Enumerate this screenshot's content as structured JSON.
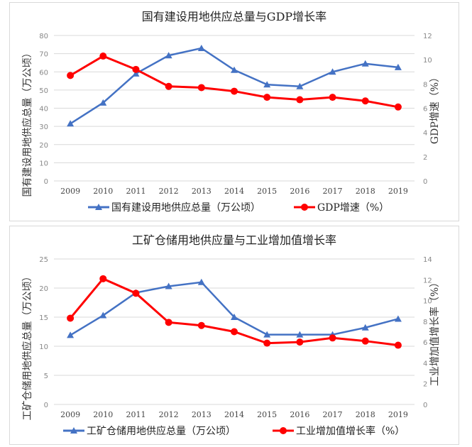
{
  "chart_data": [
    {
      "type": "line",
      "title": "国有建设用地供应总量与GDP增长率",
      "categories": [
        "2009",
        "2010",
        "2011",
        "2012",
        "2013",
        "2014",
        "2015",
        "2016",
        "2017",
        "2018",
        "2019"
      ],
      "ylabel": "国有建设用地供应总量（万公顷）",
      "y2label": "GDP增速（%）",
      "ylim": [
        0,
        80
      ],
      "yticks": [
        0,
        10,
        20,
        30,
        40,
        50,
        60,
        70,
        80
      ],
      "y2lim": [
        0,
        12
      ],
      "y2ticks": [
        0,
        2,
        4,
        6,
        8,
        10,
        12
      ],
      "grid": true,
      "legend_position": "bottom",
      "series": [
        {
          "name": "国有建设用地供应总量（万公顷）",
          "axis": "left",
          "marker": "triangle",
          "color": "#4472c4",
          "values": [
            31.5,
            43,
            59,
            69,
            73,
            61,
            53,
            52,
            60,
            64.5,
            62.5
          ]
        },
        {
          "name": "GDP增速（%）",
          "axis": "right",
          "marker": "circle",
          "color": "#ff0000",
          "values": [
            8.7,
            10.3,
            9.2,
            7.8,
            7.7,
            7.4,
            6.9,
            6.7,
            6.9,
            6.6,
            6.1
          ]
        }
      ]
    },
    {
      "type": "line",
      "title": "工矿仓储用地供应量与工业增加值增长率",
      "categories": [
        "2009",
        "2010",
        "2011",
        "2012",
        "2013",
        "2014",
        "2015",
        "2016",
        "2017",
        "2018",
        "2019"
      ],
      "ylabel": "工矿仓储用地供应总量（万公顷）",
      "y2label": "工业增加值增长率（%）",
      "ylim": [
        0,
        25
      ],
      "yticks": [
        0,
        5,
        10,
        15,
        20,
        25
      ],
      "y2lim": [
        0,
        14
      ],
      "y2ticks": [
        0,
        2,
        4,
        6,
        8,
        10,
        12,
        14
      ],
      "grid": true,
      "legend_position": "bottom",
      "series": [
        {
          "name": "工矿仓储用地供应总量（万公顷）",
          "axis": "left",
          "marker": "triangle",
          "color": "#4472c4",
          "values": [
            11.9,
            15.3,
            19.2,
            20.3,
            21.0,
            15.0,
            12.0,
            12.0,
            12.0,
            13.2,
            14.7
          ]
        },
        {
          "name": "工业增加值增长率（%）",
          "axis": "right",
          "marker": "circle",
          "color": "#ff0000",
          "values": [
            8.3,
            12.1,
            10.7,
            7.9,
            7.6,
            7.0,
            5.9,
            6.0,
            6.4,
            6.1,
            5.7
          ]
        }
      ]
    }
  ]
}
